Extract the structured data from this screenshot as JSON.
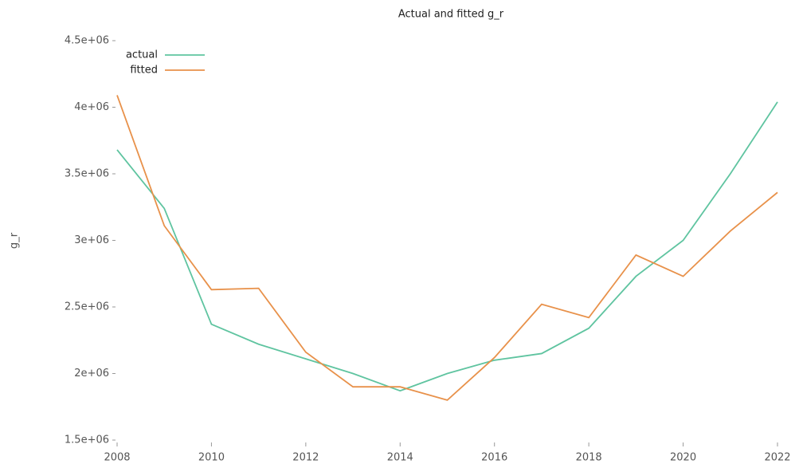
{
  "chart_data": {
    "type": "line",
    "title": "Actual and fitted g_r",
    "ylabel": "g_r",
    "x": [
      2008,
      2009,
      2010,
      2011,
      2012,
      2013,
      2014,
      2015,
      2016,
      2017,
      2018,
      2019,
      2020,
      2021,
      2022
    ],
    "series": [
      {
        "name": "actual",
        "color": "#5fc4a0",
        "values": [
          3680000,
          3240000,
          2370000,
          2220000,
          2110000,
          2000000,
          1870000,
          2000000,
          2100000,
          2150000,
          2340000,
          2730000,
          3000000,
          3500000,
          4040000
        ]
      },
      {
        "name": "fitted",
        "color": "#e8914a",
        "values": [
          4090000,
          3110000,
          2630000,
          2640000,
          2160000,
          1900000,
          1900000,
          1800000,
          2120000,
          2520000,
          2420000,
          2890000,
          2730000,
          3070000,
          3360000
        ]
      }
    ],
    "xlim": [
      2008,
      2022
    ],
    "xticks": [
      2008,
      2010,
      2012,
      2014,
      2016,
      2018,
      2020,
      2022
    ],
    "ylim": [
      1500000,
      4500000
    ],
    "yticks": [
      {
        "value": 1500000,
        "label": "1.5e+06"
      },
      {
        "value": 2000000,
        "label": "2e+06"
      },
      {
        "value": 2500000,
        "label": "2.5e+06"
      },
      {
        "value": 3000000,
        "label": "3e+06"
      },
      {
        "value": 3500000,
        "label": "3.5e+06"
      },
      {
        "value": 4000000,
        "label": "4e+06"
      },
      {
        "value": 4500000,
        "label": "4.5e+06"
      }
    ],
    "legend": "top-left"
  }
}
